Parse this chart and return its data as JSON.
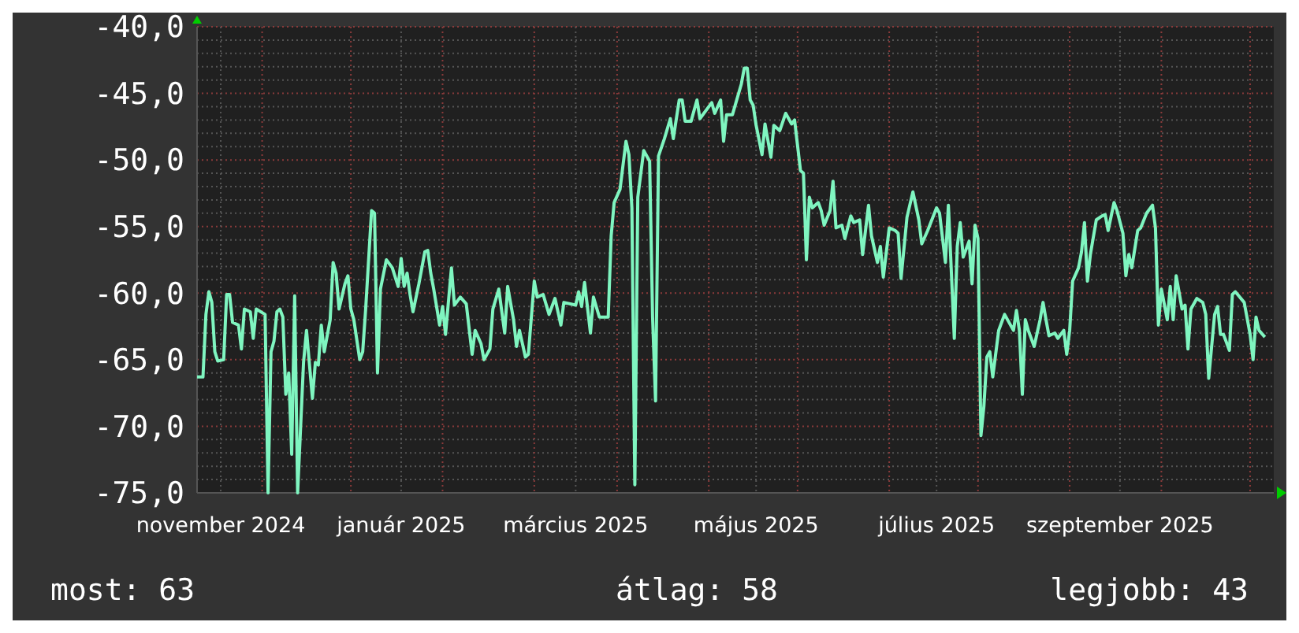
{
  "chart_data": {
    "type": "line",
    "x": [
      "2024-10-24",
      "2024-10-26",
      "2024-10-27",
      "2024-10-28",
      "2024-10-29",
      "2024-10-30",
      "2024-10-31",
      "2024-11-02",
      "2024-11-03",
      "2024-11-04",
      "2024-11-05",
      "2024-11-07",
      "2024-11-08",
      "2024-11-09",
      "2024-11-11",
      "2024-11-12",
      "2024-11-13",
      "2024-11-16",
      "2024-11-17",
      "2024-11-18",
      "2024-11-19",
      "2024-11-20",
      "2024-11-21",
      "2024-11-22",
      "2024-11-23",
      "2024-11-24",
      "2024-11-25",
      "2024-11-26",
      "2024-11-27",
      "2024-11-29",
      "2024-11-30",
      "2024-12-02",
      "2024-12-03",
      "2024-12-04",
      "2024-12-05",
      "2024-12-06",
      "2024-12-08",
      "2024-12-09",
      "2024-12-10",
      "2024-12-11",
      "2024-12-13",
      "2024-12-14",
      "2024-12-15",
      "2024-12-16",
      "2024-12-18",
      "2024-12-19",
      "2024-12-20",
      "2024-12-22",
      "2024-12-23",
      "2024-12-24",
      "2024-12-25",
      "2024-12-27",
      "2024-12-29",
      "2024-12-31",
      "2025-01-01",
      "2025-01-02",
      "2025-01-03",
      "2025-01-04",
      "2025-01-05",
      "2025-01-07",
      "2025-01-09",
      "2025-01-10",
      "2025-01-11",
      "2025-01-12",
      "2025-01-14",
      "2025-01-15",
      "2025-01-16",
      "2025-01-18",
      "2025-01-19",
      "2025-01-21",
      "2025-01-23",
      "2025-01-25",
      "2025-01-26",
      "2025-01-28",
      "2025-01-29",
      "2025-01-31",
      "2025-02-01",
      "2025-02-03",
      "2025-02-05",
      "2025-02-06",
      "2025-02-08",
      "2025-02-09",
      "2025-02-10",
      "2025-02-12",
      "2025-02-13",
      "2025-02-15",
      "2025-02-16",
      "2025-02-18",
      "2025-02-20",
      "2025-02-22",
      "2025-02-24",
      "2025-02-25",
      "2025-03-01",
      "2025-03-02",
      "2025-03-03",
      "2025-03-04",
      "2025-03-06",
      "2025-03-07",
      "2025-03-09",
      "2025-03-12",
      "2025-03-13",
      "2025-03-14",
      "2025-03-16",
      "2025-03-18",
      "2025-03-19",
      "2025-03-20",
      "2025-03-21",
      "2025-03-22",
      "2025-03-24",
      "2025-03-26",
      "2025-03-27",
      "2025-03-28",
      "2025-03-29",
      "2025-03-31",
      "2025-04-02",
      "2025-04-03",
      "2025-04-05",
      "2025-04-06",
      "2025-04-07",
      "2025-04-09",
      "2025-04-11",
      "2025-04-12",
      "2025-04-16",
      "2025-04-17",
      "2025-04-19",
      "2025-04-20",
      "2025-04-21",
      "2025-04-23",
      "2025-04-26",
      "2025-04-27",
      "2025-04-28",
      "2025-04-29",
      "2025-04-30",
      "2025-05-01",
      "2025-05-03",
      "2025-05-04",
      "2025-05-06",
      "2025-05-07",
      "2025-05-09",
      "2025-05-11",
      "2025-05-13",
      "2025-05-14",
      "2025-05-16",
      "2025-05-17",
      "2025-05-18",
      "2025-05-19",
      "2025-05-20",
      "2025-05-22",
      "2025-05-23",
      "2025-05-24",
      "2025-05-26",
      "2025-05-27",
      "2025-05-28",
      "2025-05-30",
      "2025-05-31",
      "2025-06-02",
      "2025-06-03",
      "2025-06-05",
      "2025-06-06",
      "2025-06-08",
      "2025-06-09",
      "2025-06-11",
      "2025-06-12",
      "2025-06-13",
      "2025-06-15",
      "2025-06-17",
      "2025-06-18",
      "2025-06-19",
      "2025-06-21",
      "2025-06-23",
      "2025-06-25",
      "2025-06-26",
      "2025-06-28",
      "2025-07-01",
      "2025-07-02",
      "2025-07-04",
      "2025-07-05",
      "2025-07-07",
      "2025-07-08",
      "2025-07-09",
      "2025-07-10",
      "2025-07-12",
      "2025-07-13",
      "2025-07-14",
      "2025-07-15",
      "2025-07-16",
      "2025-07-17",
      "2025-07-18",
      "2025-07-19",
      "2025-07-20",
      "2025-07-22",
      "2025-07-24",
      "2025-07-25",
      "2025-07-27",
      "2025-07-28",
      "2025-07-29",
      "2025-07-30",
      "2025-07-31",
      "2025-08-01",
      "2025-08-03",
      "2025-08-05",
      "2025-08-06",
      "2025-08-07",
      "2025-08-08",
      "2025-08-10",
      "2025-08-11",
      "2025-08-13",
      "2025-08-14",
      "2025-08-15",
      "2025-08-16",
      "2025-08-18",
      "2025-08-19",
      "2025-08-20",
      "2025-08-21",
      "2025-08-22",
      "2025-08-24",
      "2025-08-26",
      "2025-08-27",
      "2025-08-28",
      "2025-08-30",
      "2025-08-31",
      "2025-09-02",
      "2025-09-03",
      "2025-09-04",
      "2025-09-05",
      "2025-09-07",
      "2025-09-08",
      "2025-09-10",
      "2025-09-12",
      "2025-09-13",
      "2025-09-14",
      "2025-09-15",
      "2025-09-17",
      "2025-09-18",
      "2025-09-19",
      "2025-09-20",
      "2025-09-22",
      "2025-09-23",
      "2025-09-24",
      "2025-09-25",
      "2025-09-27",
      "2025-09-29",
      "2025-09-30",
      "2025-10-01",
      "2025-10-03",
      "2025-10-04",
      "2025-10-05",
      "2025-10-06",
      "2025-10-08",
      "2025-10-09",
      "2025-10-10",
      "2025-10-13",
      "2025-10-15",
      "2025-10-16",
      "2025-10-17",
      "2025-10-18",
      "2025-10-20"
    ],
    "series": [
      {
        "color": "#7ff5c0",
        "values": [
          -66.3,
          -66.3,
          -61.6,
          -59.9,
          -60.7,
          -64.4,
          -65.1,
          -65.0,
          -60.1,
          -60.1,
          -62.2,
          -62.4,
          -64.2,
          -61.2,
          -61.4,
          -63.4,
          -61.2,
          -61.6,
          -75.0,
          -64.4,
          -63.6,
          -61.4,
          -61.2,
          -61.8,
          -67.6,
          -66.0,
          -72.1,
          -60.2,
          -75.0,
          -65.2,
          -62.8,
          -67.9,
          -65.2,
          -65.4,
          -62.4,
          -64.4,
          -62.0,
          -57.7,
          -58.5,
          -61.2,
          -59.3,
          -58.7,
          -61.2,
          -62.0,
          -65.0,
          -64.4,
          -61.2,
          -53.8,
          -54.0,
          -66.0,
          -59.7,
          -57.5,
          -58.1,
          -59.5,
          -57.4,
          -59.5,
          -58.5,
          -60.1,
          -61.4,
          -59.3,
          -56.9,
          -56.8,
          -58.5,
          -59.7,
          -62.4,
          -61.0,
          -63.1,
          -58.1,
          -60.9,
          -60.3,
          -60.8,
          -64.6,
          -62.8,
          -63.8,
          -65.0,
          -64.2,
          -61.2,
          -59.7,
          -63.0,
          -59.5,
          -62.0,
          -64.0,
          -62.8,
          -64.8,
          -64.6,
          -59.1,
          -60.3,
          -60.1,
          -61.6,
          -60.4,
          -62.4,
          -60.7,
          -60.9,
          -59.9,
          -61.0,
          -59.2,
          -63.0,
          -60.3,
          -61.8,
          -61.8,
          -55.7,
          -53.2,
          -52.2,
          -48.6,
          -49.6,
          -53.6,
          -74.4,
          -52.8,
          -49.3,
          -50.1,
          -61.8,
          -68.1,
          -49.7,
          -48.4,
          -46.9,
          -48.4,
          -45.5,
          -45.5,
          -47.1,
          -47.1,
          -45.5,
          -46.9,
          -45.7,
          -46.5,
          -45.5,
          -48.6,
          -46.6,
          -46.6,
          -44.3,
          -43.1,
          -43.1,
          -45.5,
          -45.9,
          -47.4,
          -49.6,
          -47.3,
          -49.8,
          -47.4,
          -47.8,
          -46.5,
          -47.3,
          -47.0,
          -50.8,
          -51.0,
          -57.5,
          -52.8,
          -53.6,
          -53.2,
          -53.8,
          -54.9,
          -53.8,
          -51.6,
          -55.1,
          -54.9,
          -55.9,
          -54.2,
          -54.7,
          -54.5,
          -57.1,
          -53.4,
          -55.7,
          -57.7,
          -56.5,
          -58.8,
          -55.1,
          -55.3,
          -55.5,
          -58.9,
          -54.3,
          -52.4,
          -54.5,
          -56.3,
          -55.3,
          -53.6,
          -54.0,
          -57.7,
          -53.4,
          -63.4,
          -56.5,
          -54.7,
          -57.3,
          -56.1,
          -59.3,
          -54.9,
          -55.9,
          -70.7,
          -68.5,
          -64.8,
          -64.4,
          -66.3,
          -62.8,
          -61.6,
          -62.0,
          -62.8,
          -61.3,
          -62.8,
          -67.6,
          -62.0,
          -62.8,
          -64.0,
          -62.0,
          -60.7,
          -62.0,
          -63.2,
          -63.0,
          -63.4,
          -62.8,
          -64.6,
          -62.8,
          -59.1,
          -58.1,
          -56.9,
          -54.7,
          -59.1,
          -57.1,
          -54.5,
          -54.2,
          -54.1,
          -55.3,
          -53.2,
          -53.8,
          -55.5,
          -58.7,
          -57.1,
          -58.1,
          -55.3,
          -55.1,
          -54.0,
          -53.4,
          -55.1,
          -62.4,
          -59.7,
          -62.0,
          -59.5,
          -62.0,
          -58.7,
          -61.2,
          -60.9,
          -64.2,
          -61.2,
          -60.4,
          -60.7,
          -61.6,
          -66.4,
          -61.6,
          -61.0,
          -63.1,
          -63.1,
          -64.3,
          -60.1,
          -59.9,
          -60.7,
          -63.1,
          -65.0,
          -61.8,
          -62.8,
          -63.3
        ]
      }
    ],
    "xlim": [
      "2024-10-24",
      "2025-10-23"
    ],
    "xticks": [
      {
        "value": "2024-11-01",
        "label": "november 2024"
      },
      {
        "value": "2024-11-15",
        "label": null
      },
      {
        "value": "2024-12-15",
        "label": null
      },
      {
        "value": "2025-01-01",
        "label": "január 2025"
      },
      {
        "value": "2025-01-15",
        "label": null
      },
      {
        "value": "2025-02-15",
        "label": null
      },
      {
        "value": "2025-03-01",
        "label": "március 2025"
      },
      {
        "value": "2025-03-15",
        "label": null
      },
      {
        "value": "2025-04-15",
        "label": null
      },
      {
        "value": "2025-05-01",
        "label": "május 2025"
      },
      {
        "value": "2025-05-15",
        "label": null
      },
      {
        "value": "2025-06-15",
        "label": null
      },
      {
        "value": "2025-07-01",
        "label": "július 2025"
      },
      {
        "value": "2025-07-15",
        "label": null
      },
      {
        "value": "2025-08-15",
        "label": null
      },
      {
        "value": "2025-09-01",
        "label": "szeptember 2025"
      },
      {
        "value": "2025-09-15",
        "label": null
      },
      {
        "value": "2025-10-15",
        "label": null
      }
    ],
    "ylim": [
      -75,
      -40
    ],
    "yticks": [
      {
        "value": -75,
        "label": "-75,0"
      },
      {
        "value": -74,
        "label": null
      },
      {
        "value": -73,
        "label": null
      },
      {
        "value": -72,
        "label": null
      },
      {
        "value": -71,
        "label": null
      },
      {
        "value": -70,
        "label": "-70,0"
      },
      {
        "value": -69,
        "label": null
      },
      {
        "value": -68,
        "label": null
      },
      {
        "value": -67,
        "label": null
      },
      {
        "value": -66,
        "label": null
      },
      {
        "value": -65,
        "label": "-65,0"
      },
      {
        "value": -64,
        "label": null
      },
      {
        "value": -63,
        "label": null
      },
      {
        "value": -62,
        "label": null
      },
      {
        "value": -61,
        "label": null
      },
      {
        "value": -60,
        "label": "-60,0"
      },
      {
        "value": -59,
        "label": null
      },
      {
        "value": -58,
        "label": null
      },
      {
        "value": -57,
        "label": null
      },
      {
        "value": -56,
        "label": null
      },
      {
        "value": -55,
        "label": "-55,0"
      },
      {
        "value": -54,
        "label": null
      },
      {
        "value": -53,
        "label": null
      },
      {
        "value": -52,
        "label": null
      },
      {
        "value": -51,
        "label": null
      },
      {
        "value": -50,
        "label": "-50,0"
      },
      {
        "value": -49,
        "label": null
      },
      {
        "value": -48,
        "label": null
      },
      {
        "value": -47,
        "label": null
      },
      {
        "value": -46,
        "label": null
      },
      {
        "value": -45,
        "label": "-45,0"
      },
      {
        "value": -44,
        "label": null
      },
      {
        "value": -43,
        "label": null
      },
      {
        "value": -42,
        "label": null
      },
      {
        "value": -41,
        "label": null
      },
      {
        "value": -40,
        "label": "-40,0"
      }
    ],
    "grid": true,
    "annotations": [
      "most: 63",
      "átlag: 58",
      "legjobb: 43"
    ]
  }
}
